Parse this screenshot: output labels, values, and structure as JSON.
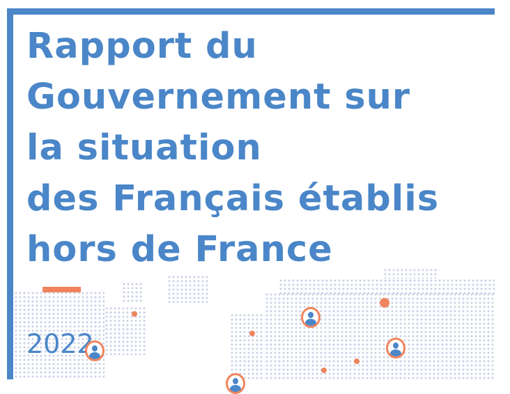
{
  "title_lines": [
    "Rapport du",
    "Gouvernement sur",
    "la situation",
    "des Français établis",
    "hors de France"
  ],
  "year": "2022",
  "colors": {
    "accent": "#4a86c8",
    "highlight": "#f0845c",
    "map_dots": "#c9d1e8"
  }
}
